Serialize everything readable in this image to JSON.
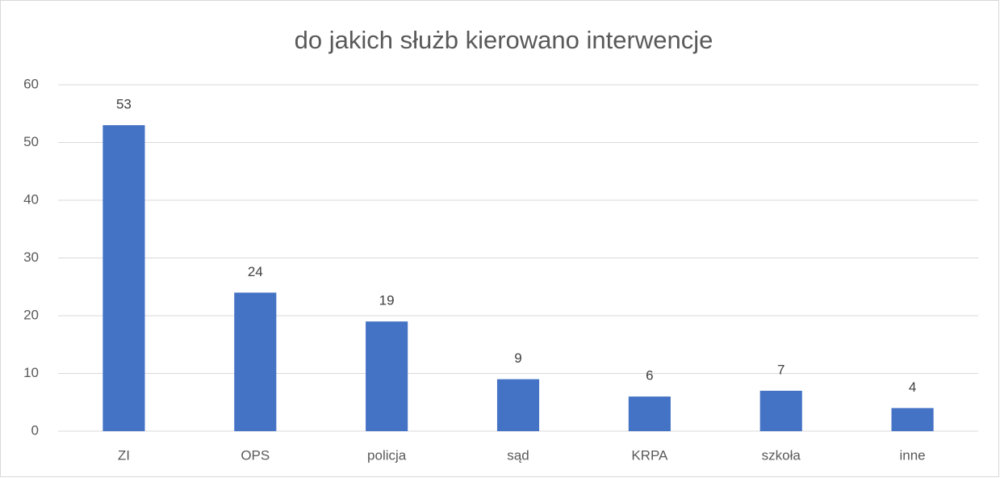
{
  "chart_data": {
    "type": "bar",
    "title": "do jakich służb kierowano interwencje",
    "categories": [
      "ZI",
      "OPS",
      "policja",
      "sąd",
      "KRPA",
      "szkoła",
      "inne"
    ],
    "values": [
      53,
      24,
      19,
      9,
      6,
      7,
      4
    ],
    "color": "#4472c4",
    "ylim": [
      0,
      60
    ],
    "yticks": [
      0,
      10,
      20,
      30,
      40,
      50,
      60
    ],
    "grid": true
  }
}
